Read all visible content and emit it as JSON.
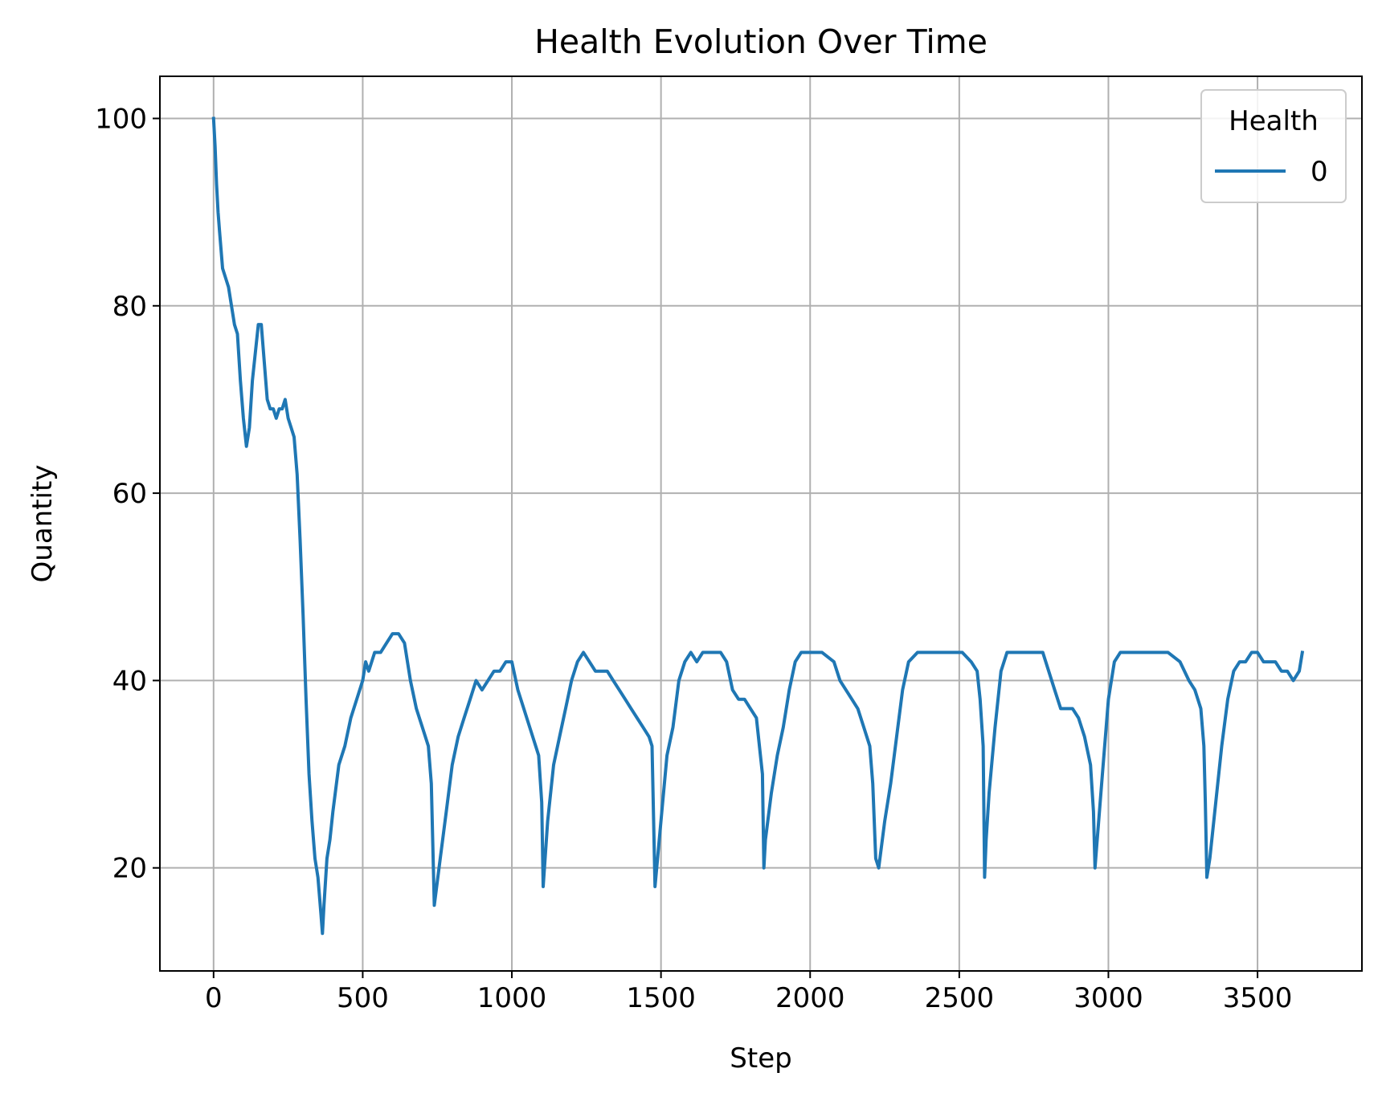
{
  "chart_data": {
    "type": "line",
    "title": "Health Evolution Over Time",
    "xlabel": "Step",
    "ylabel": "Quantity",
    "xlim": [
      -180,
      3850
    ],
    "ylim": [
      9,
      104.5
    ],
    "x_ticks": [
      0,
      500,
      1000,
      1500,
      2000,
      2500,
      3000,
      3500
    ],
    "y_ticks": [
      20,
      40,
      60,
      80,
      100
    ],
    "grid": true,
    "legend": {
      "title": "Health",
      "placement": "top-right",
      "entries": [
        "0"
      ]
    },
    "series": [
      {
        "name": "0",
        "color": "#1f77b4",
        "x": [
          0,
          5,
          10,
          15,
          20,
          25,
          30,
          40,
          50,
          60,
          70,
          80,
          90,
          100,
          110,
          120,
          130,
          140,
          150,
          160,
          170,
          180,
          190,
          200,
          210,
          220,
          230,
          240,
          250,
          260,
          270,
          280,
          290,
          300,
          310,
          320,
          330,
          340,
          350,
          360,
          365,
          370,
          380,
          390,
          400,
          420,
          440,
          460,
          480,
          500,
          510,
          520,
          540,
          560,
          580,
          600,
          620,
          640,
          660,
          680,
          700,
          720,
          730,
          740,
          760,
          780,
          800,
          820,
          840,
          860,
          880,
          900,
          920,
          940,
          960,
          980,
          1000,
          1020,
          1040,
          1060,
          1080,
          1090,
          1100,
          1105,
          1120,
          1140,
          1160,
          1180,
          1200,
          1220,
          1240,
          1260,
          1280,
          1300,
          1320,
          1340,
          1360,
          1380,
          1400,
          1420,
          1440,
          1460,
          1470,
          1480,
          1500,
          1520,
          1540,
          1560,
          1580,
          1600,
          1620,
          1640,
          1660,
          1680,
          1700,
          1720,
          1740,
          1760,
          1780,
          1800,
          1820,
          1840,
          1845,
          1850,
          1870,
          1890,
          1910,
          1930,
          1950,
          1970,
          2000,
          2040,
          2080,
          2100,
          2120,
          2140,
          2160,
          2180,
          2200,
          2210,
          2220,
          2230,
          2250,
          2270,
          2290,
          2310,
          2330,
          2360,
          2400,
          2440,
          2480,
          2510,
          2540,
          2560,
          2570,
          2580,
          2585,
          2590,
          2600,
          2620,
          2640,
          2660,
          2680,
          2700,
          2740,
          2780,
          2820,
          2840,
          2860,
          2880,
          2900,
          2920,
          2940,
          2950,
          2955,
          2960,
          2980,
          3000,
          3020,
          3040,
          3060,
          3100,
          3150,
          3200,
          3240,
          3270,
          3290,
          3300,
          3310,
          3320,
          3325,
          3330,
          3340,
          3360,
          3380,
          3400,
          3420,
          3440,
          3460,
          3480,
          3500,
          3520,
          3540,
          3560,
          3580,
          3600,
          3620,
          3640,
          3650
        ],
        "values": [
          100,
          97,
          93,
          90,
          88,
          86,
          84,
          83,
          82,
          80,
          78,
          77,
          72,
          68,
          65,
          67,
          72,
          75,
          78,
          78,
          74,
          70,
          69,
          69,
          68,
          69,
          69,
          70,
          68,
          67,
          66,
          62,
          55,
          47,
          38,
          30,
          25,
          21,
          19,
          15,
          13,
          16,
          21,
          23,
          26,
          31,
          33,
          36,
          38,
          40,
          42,
          41,
          43,
          43,
          44,
          45,
          45,
          44,
          40,
          37,
          35,
          33,
          29,
          16,
          21,
          26,
          31,
          34,
          36,
          38,
          40,
          39,
          40,
          41,
          41,
          42,
          42,
          39,
          37,
          35,
          33,
          32,
          27,
          18,
          25,
          31,
          34,
          37,
          40,
          42,
          43,
          42,
          41,
          41,
          41,
          40,
          39,
          38,
          37,
          36,
          35,
          34,
          33,
          18,
          25,
          32,
          35,
          40,
          42,
          43,
          42,
          43,
          43,
          43,
          43,
          42,
          39,
          38,
          38,
          37,
          36,
          30,
          20,
          23,
          28,
          32,
          35,
          39,
          42,
          43,
          43,
          43,
          42,
          40,
          39,
          38,
          37,
          35,
          33,
          29,
          21,
          20,
          25,
          29,
          34,
          39,
          42,
          43,
          43,
          43,
          43,
          43,
          42,
          41,
          38,
          33,
          19,
          23,
          28,
          35,
          41,
          43,
          43,
          43,
          43,
          43,
          39,
          37,
          37,
          37,
          36,
          34,
          31,
          26,
          20,
          22,
          30,
          38,
          42,
          43,
          43,
          43,
          43,
          43,
          42,
          40,
          39,
          38,
          37,
          33,
          27,
          19,
          21,
          27,
          33,
          38,
          41,
          42,
          42,
          43,
          43,
          42,
          42,
          42,
          41,
          41,
          40,
          41,
          43
        ]
      }
    ]
  }
}
